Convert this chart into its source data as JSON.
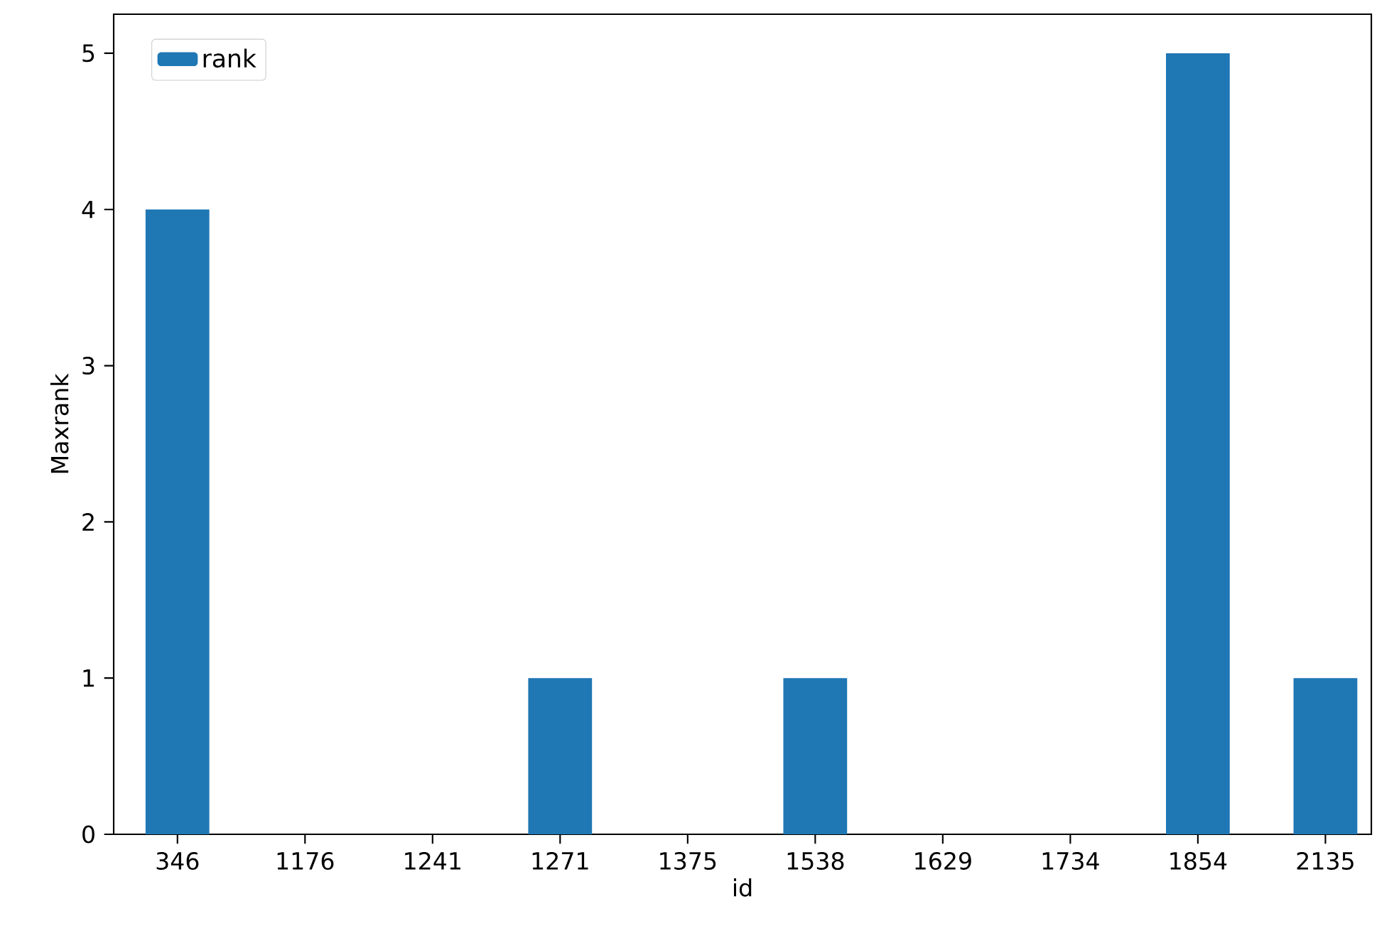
{
  "chart_data": {
    "type": "bar",
    "xlabel": "id",
    "ylabel": "Maxrank",
    "categories": [
      "346",
      "1176",
      "1241",
      "1271",
      "1375",
      "1538",
      "1629",
      "1734",
      "1854",
      "2135"
    ],
    "series": [
      {
        "name": "rank",
        "color": "#1f77b4",
        "values": [
          4,
          0,
          0,
          1,
          0,
          1,
          0,
          0,
          5,
          1
        ]
      }
    ],
    "ylim": [
      0,
      5.25
    ],
    "yticks": [
      0,
      1,
      2,
      3,
      4,
      5
    ],
    "legend": "top left",
    "grid": false
  }
}
